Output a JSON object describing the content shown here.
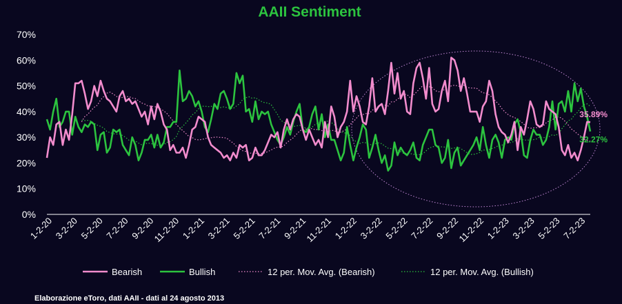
{
  "chart_data": {
    "type": "line",
    "title": "AAII Sentiment",
    "xlabel": "",
    "ylabel": "",
    "ylim": [
      0,
      70
    ],
    "y_ticks": [
      "0%",
      "10%",
      "20%",
      "30%",
      "40%",
      "50%",
      "60%",
      "70%"
    ],
    "x_tick_labels": [
      "1-2-20",
      "3-2-20",
      "5-2-20",
      "7-2-20",
      "9-2-20",
      "11-2-20",
      "1-2-21",
      "3-2-21",
      "5-2-21",
      "7-2-21",
      "9-2-21",
      "11-2-21",
      "1-2-22",
      "3-2-22",
      "5-2-22",
      "7-2-22",
      "9-2-22",
      "11-2-22",
      "1-2-23",
      "3-2-23",
      "5-2-23",
      "7-2-23"
    ],
    "grid": false,
    "legend_position": "bottom",
    "series": [
      {
        "name": "Bearish",
        "color": "#f28ccd",
        "style": "solid",
        "values": [
          22,
          30,
          27,
          35,
          36,
          27,
          33,
          29,
          39,
          51,
          51,
          52,
          47,
          41,
          44,
          50,
          46,
          52,
          48,
          45,
          44,
          42,
          40,
          46,
          48,
          44,
          45,
          43,
          44,
          41,
          38,
          40,
          35,
          42,
          37,
          43,
          40,
          35,
          33,
          25,
          27,
          24,
          24,
          26,
          22,
          27,
          33,
          34,
          38,
          37,
          36,
          30,
          27,
          26,
          25,
          24,
          22,
          23,
          21,
          24,
          22,
          27,
          26,
          27,
          21,
          22,
          26,
          23,
          23,
          25,
          28,
          31,
          30,
          32,
          26,
          33,
          37,
          33,
          37,
          39,
          38,
          33,
          29,
          33,
          30,
          27,
          29,
          26,
          36,
          30,
          42,
          38,
          30,
          34,
          36,
          40,
          52,
          40,
          46,
          42,
          36,
          35,
          42,
          53,
          40,
          42,
          43,
          39,
          48,
          59,
          47,
          55,
          45,
          48,
          40,
          39,
          51,
          57,
          59,
          53,
          45,
          57,
          43,
          40,
          41,
          48,
          52,
          44,
          61,
          60,
          56,
          48,
          53,
          47,
          40,
          40,
          40,
          36,
          42,
          44,
          52,
          48,
          39,
          34,
          32,
          31,
          28,
          31,
          36,
          25,
          34,
          31,
          37,
          44,
          41,
          35,
          34,
          35,
          44,
          41,
          40,
          39,
          34,
          25,
          23,
          27,
          22,
          24,
          21,
          25,
          30,
          36,
          35.89
        ]
      },
      {
        "name": "Bullish",
        "color": "#2cc33f",
        "style": "solid",
        "values": [
          37,
          33,
          40,
          45,
          34,
          36,
          40,
          40,
          31,
          38,
          34,
          32,
          35,
          34,
          36,
          35,
          25,
          31,
          32,
          24,
          26,
          33,
          32,
          33,
          27,
          25,
          23,
          30,
          27,
          21,
          24,
          29,
          29,
          31,
          26,
          31,
          26,
          28,
          34,
          34,
          36,
          36,
          56,
          44,
          45,
          48,
          46,
          42,
          44,
          40,
          34,
          32,
          37,
          43,
          41,
          47,
          48,
          45,
          41,
          43,
          55,
          51,
          54,
          40,
          41,
          36,
          44,
          37,
          40,
          39,
          40,
          35,
          32,
          29,
          27,
          30,
          34,
          31,
          36,
          40,
          43,
          33,
          32,
          34,
          39,
          42,
          33,
          39,
          30,
          35,
          29,
          29,
          25,
          21,
          24,
          34,
          27,
          21,
          26,
          30,
          35,
          33,
          22,
          26,
          31,
          25,
          20,
          23,
          17,
          19,
          28,
          23,
          26,
          24,
          23,
          25,
          28,
          22,
          21,
          27,
          30,
          33,
          33,
          27,
          26,
          20,
          22,
          29,
          18,
          24,
          26,
          19,
          21,
          23,
          25,
          27,
          30,
          25,
          34,
          27,
          22,
          29,
          31,
          28,
          22,
          29,
          30,
          29,
          35,
          37,
          32,
          23,
          22,
          29,
          33,
          31,
          31,
          27,
          29,
          34,
          44,
          33,
          43,
          44,
          40,
          48,
          40,
          51,
          44,
          49,
          42,
          38,
          32.27
        ]
      },
      {
        "name": "12 per. Mov. Avg. (Bearish)",
        "color": "#f28ccd",
        "style": "dotted"
      },
      {
        "name": "12 per. Mov. Avg. (Bullish)",
        "color": "#2cc33f",
        "style": "dotted"
      }
    ],
    "end_labels": {
      "bearish": "35.89%",
      "bullish": "32.27%"
    },
    "annotations": [
      "ellipse highlighting 2022–2023"
    ]
  },
  "footnote": "Elaborazione eToro, dati AAII - dati al 24 agosto 2013"
}
